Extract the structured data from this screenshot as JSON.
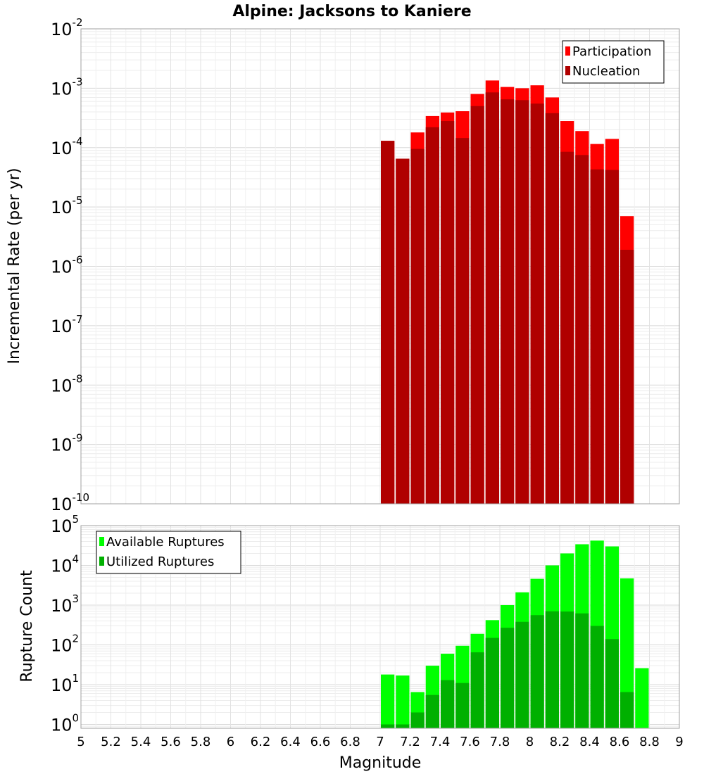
{
  "chart_data": [
    {
      "type": "bar",
      "title": "Alpine: Jacksons to Kaniere",
      "ylabel": "Incremental Rate (per yr)",
      "xlabel": "",
      "yscale": "log",
      "ylim": [
        1e-10,
        0.01
      ],
      "xlim": [
        5,
        9
      ],
      "grid": true,
      "legend_position": "top-right",
      "x": [
        7.05,
        7.15,
        7.25,
        7.35,
        7.45,
        7.55,
        7.65,
        7.75,
        7.85,
        7.95,
        8.05,
        8.15,
        8.25,
        8.35,
        8.45,
        8.55,
        8.65
      ],
      "series": [
        {
          "name": "Participation",
          "color": "#ff0000",
          "values": [
            0.00013,
            6.5e-05,
            0.00018,
            0.00034,
            0.00039,
            0.00041,
            0.0008,
            0.00135,
            0.00105,
            0.001,
            0.00112,
            0.0007,
            0.00028,
            0.00019,
            0.000115,
            0.00014,
            7e-06
          ]
        },
        {
          "name": "Nucleation",
          "color": "#b00000",
          "values": [
            0.00013,
            6.5e-05,
            9.5e-05,
            0.00022,
            0.00028,
            0.000145,
            0.0005,
            0.00085,
            0.00065,
            0.00063,
            0.00055,
            0.00038,
            8.5e-05,
            7.5e-05,
            4.3e-05,
            4.2e-05,
            1.9e-06
          ]
        }
      ]
    },
    {
      "type": "bar",
      "title": "",
      "ylabel": "Rupture Count",
      "xlabel": "Magnitude",
      "yscale": "log",
      "ylim": [
        0.8,
        100000
      ],
      "xlim": [
        5,
        9
      ],
      "grid": true,
      "legend_position": "top-left",
      "x_ticks": [
        "5",
        "5.2",
        "5.4",
        "5.6",
        "5.8",
        "6",
        "6.2",
        "6.4",
        "6.6",
        "6.8",
        "7",
        "7.2",
        "7.4",
        "7.6",
        "7.8",
        "8",
        "8.2",
        "8.4",
        "8.6",
        "8.8",
        "9"
      ],
      "x": [
        7.05,
        7.15,
        7.25,
        7.35,
        7.45,
        7.55,
        7.65,
        7.75,
        7.85,
        7.95,
        8.05,
        8.15,
        8.25,
        8.35,
        8.45,
        8.55,
        8.65,
        8.75
      ],
      "series": [
        {
          "name": "Available Ruptures",
          "color": "#00ff00",
          "values": [
            18,
            17,
            6.5,
            30,
            60,
            95,
            190,
            420,
            1000,
            2100,
            4600,
            10000,
            20000,
            34000,
            42000,
            30000,
            4700,
            26
          ]
        },
        {
          "name": "Utilized Ruptures",
          "color": "#00b000",
          "values": [
            1,
            1,
            2,
            5.5,
            13,
            11,
            65,
            150,
            270,
            380,
            560,
            700,
            690,
            620,
            300,
            140,
            6.5,
            null
          ]
        }
      ]
    }
  ],
  "y_tick_labels": {
    "top": [
      {
        "base": "10",
        "exp": "-10"
      },
      {
        "base": "10",
        "exp": "-9"
      },
      {
        "base": "10",
        "exp": "-8"
      },
      {
        "base": "10",
        "exp": "-7"
      },
      {
        "base": "10",
        "exp": "-6"
      },
      {
        "base": "10",
        "exp": "-5"
      },
      {
        "base": "10",
        "exp": "-4"
      },
      {
        "base": "10",
        "exp": "-3"
      },
      {
        "base": "10",
        "exp": "-2"
      }
    ],
    "bottom": [
      {
        "base": "10",
        "exp": "0"
      },
      {
        "base": "10",
        "exp": "1"
      },
      {
        "base": "10",
        "exp": "2"
      },
      {
        "base": "10",
        "exp": "3"
      },
      {
        "base": "10",
        "exp": "4"
      },
      {
        "base": "10",
        "exp": "5"
      }
    ]
  }
}
